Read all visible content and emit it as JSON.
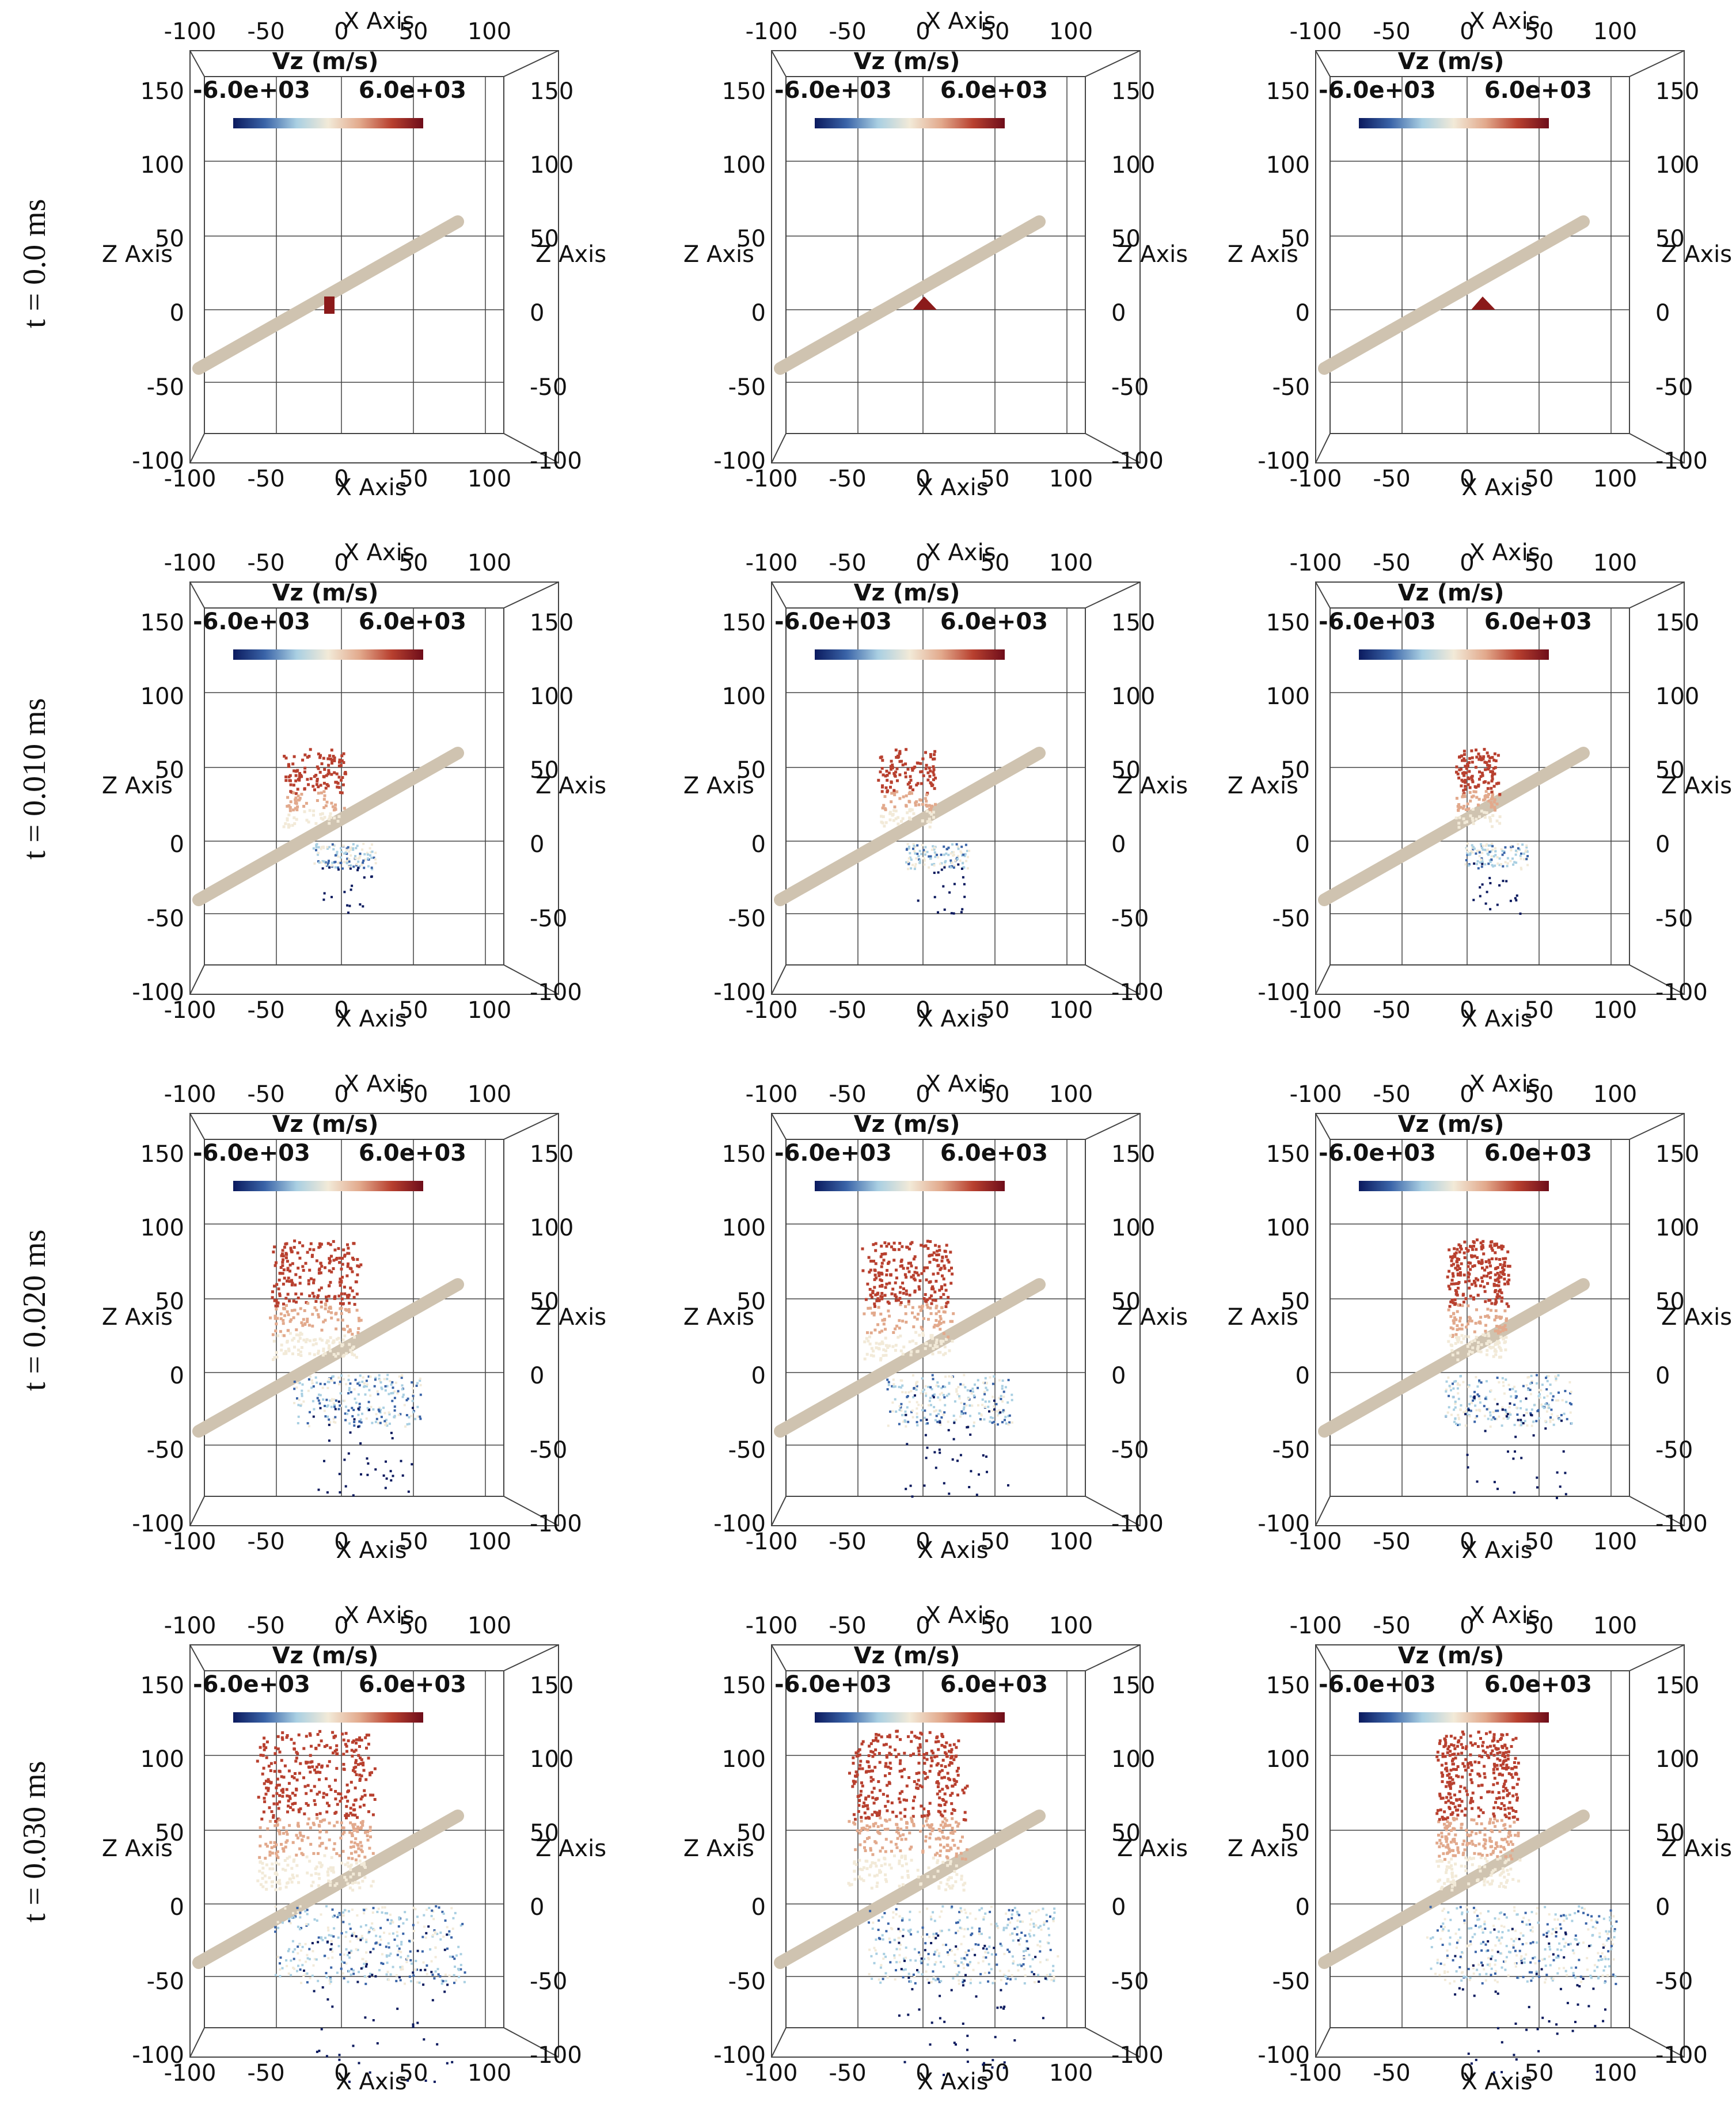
{
  "figure": {
    "time_labels": [
      "t = 0.0 ms",
      "t = 0.010 ms",
      "t = 0.020 ms",
      "t = 0.030 ms"
    ],
    "panel_columns": 3,
    "colorbar": {
      "title": "Vz (m/s)",
      "min_label": "-6.0e+03",
      "max_label": "6.0e+03",
      "min": -6000,
      "max": 6000,
      "colors": [
        "#0b1a5e",
        "#3a64a8",
        "#a9cfe2",
        "#f2ead8",
        "#e2a98c",
        "#b8402f",
        "#6e0d1a"
      ]
    },
    "axes": {
      "x_title": "X Axis",
      "z_title": "Z Axis",
      "x_ticks": [
        "-100",
        "-50",
        "0",
        "50",
        "100"
      ],
      "z_ticks": [
        "-100",
        "-50",
        "0",
        "50",
        "100",
        "150"
      ],
      "x_range": [
        -100,
        100
      ],
      "z_range": [
        -100,
        150
      ]
    },
    "colors": {
      "rod": "#cfc3b0",
      "grid": "#444444",
      "text": "#111111"
    }
  }
}
